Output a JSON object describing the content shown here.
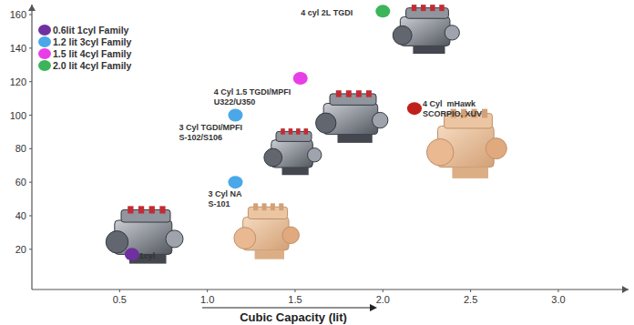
{
  "chart_data": {
    "type": "scatter",
    "x_label": "Cubic Capacity (lit)",
    "xlim": [
      0,
      3.4
    ],
    "xticks": [
      0.5,
      {
        "value": 1,
        "label": "1.0"
      },
      1.5,
      {
        "value": 2,
        "label": "2.0"
      },
      2.5,
      {
        "value": 3,
        "label": "3.0"
      }
    ],
    "ylim": [
      -4,
      166
    ],
    "yticks": [
      20,
      40,
      60,
      80,
      100,
      120,
      140,
      160
    ],
    "grid": false,
    "legend": "upper left",
    "marker": "circle",
    "series": [
      {
        "name": "0.6lit 1cyl Family",
        "color": "#7030a0",
        "x": [
          0.57
        ],
        "values": [
          17
        ],
        "labels": [
          [
            "1cyl"
          ]
        ]
      },
      {
        "name": "1.2 lit 3cyl Family",
        "color": "#4aa8e8",
        "x": [
          1.16,
          1.16
        ],
        "values": [
          60,
          100
        ],
        "labels": [
          [
            "3 Cyl NA",
            "S-101"
          ],
          [
            "3 Cyl TGDI/MPFI",
            "S-102/S106"
          ]
        ]
      },
      {
        "name": "1.5 lit 4cyl Family",
        "color": "#e83ee8",
        "x": [
          1.53
        ],
        "values": [
          122
        ],
        "labels": [
          [
            "4 Cyl 1.5 TGDI/MPFI",
            "U322/U350"
          ]
        ]
      },
      {
        "name": "2.0 lit 4cyl Family",
        "color": "#3cb55a",
        "x": [
          2.0
        ],
        "values": [
          162
        ],
        "labels": [
          [
            "4 cyl 2L TGDI"
          ]
        ]
      },
      {
        "color": "#c0201c",
        "x": [
          2.18
        ],
        "values": [
          104
        ],
        "labels": [
          [
            "4 Cyl  mHawk",
            "SCORPIO, XUV"
          ]
        ]
      }
    ]
  }
}
